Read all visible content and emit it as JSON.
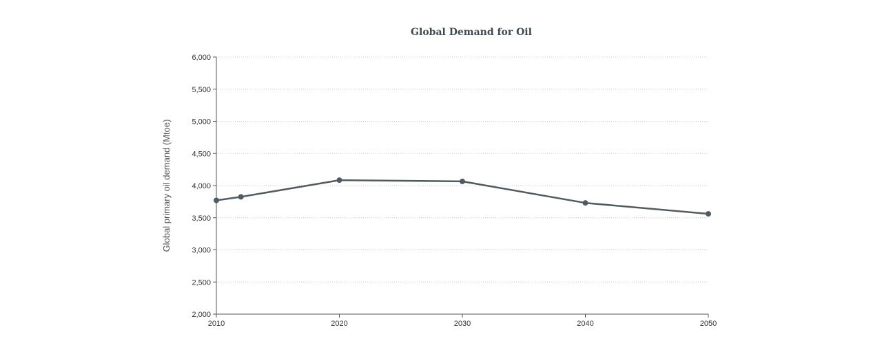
{
  "chart_data": {
    "type": "line",
    "title": "Global Demand for Oil",
    "xlabel": "",
    "ylabel": "Global primary oil demand (Mtoe)",
    "xlim": [
      2010,
      2050
    ],
    "ylim": [
      2000,
      6000
    ],
    "x_ticks": [
      2010,
      2020,
      2030,
      2040,
      2050
    ],
    "x_tick_labels": [
      "2010",
      "2020",
      "2030",
      "2040",
      "2050"
    ],
    "y_ticks": [
      2000,
      2500,
      3000,
      3500,
      4000,
      4500,
      5000,
      5500,
      6000
    ],
    "y_tick_labels": [
      "2,000",
      "2,500",
      "3,000",
      "3,500",
      "4,000",
      "4,500",
      "5,000",
      "5,500",
      "6,000"
    ],
    "grid": true,
    "series": [
      {
        "color": "#4f5b61",
        "x": [
          2010,
          2012,
          2020,
          2030,
          2040,
          2050
        ],
        "y": [
          3770,
          3825,
          4085,
          4065,
          3730,
          3560
        ]
      }
    ]
  }
}
